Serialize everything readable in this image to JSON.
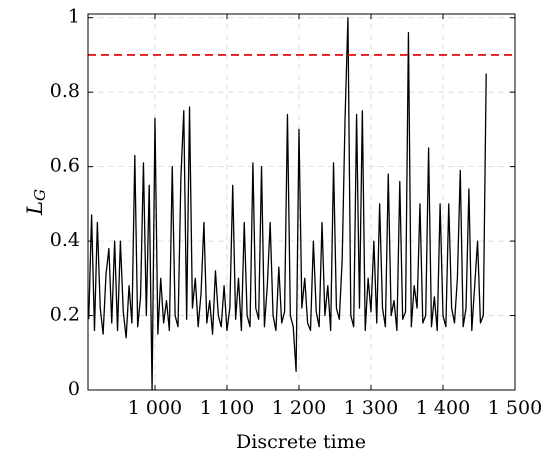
{
  "chart_data": {
    "type": "line",
    "xlabel": "Discrete time",
    "ylabel": {
      "main": "L",
      "sub": "G"
    },
    "xlim": [
      907,
      1500
    ],
    "ylim": [
      0,
      1.01
    ],
    "xticks": [
      {
        "value": 1000,
        "label": "1 000"
      },
      {
        "value": 1100,
        "label": "1 100"
      },
      {
        "value": 1200,
        "label": "1 200"
      },
      {
        "value": 1300,
        "label": "1 300"
      },
      {
        "value": 1400,
        "label": "1 400"
      },
      {
        "value": 1500,
        "label": "1 500"
      }
    ],
    "yticks": [
      0,
      0.2,
      0.4,
      0.6,
      0.8,
      1
    ],
    "grid": true,
    "threshold": {
      "value": 0.9,
      "color": "#e41a1c"
    },
    "x": [
      908,
      912,
      916,
      920,
      924,
      928,
      932,
      936,
      940,
      944,
      948,
      952,
      956,
      960,
      964,
      968,
      972,
      976,
      980,
      984,
      988,
      992,
      996,
      1000,
      1004,
      1008,
      1012,
      1016,
      1020,
      1024,
      1028,
      1032,
      1036,
      1040,
      1044,
      1048,
      1052,
      1056,
      1060,
      1064,
      1068,
      1072,
      1076,
      1080,
      1084,
      1088,
      1092,
      1096,
      1100,
      1104,
      1108,
      1112,
      1116,
      1120,
      1124,
      1128,
      1132,
      1136,
      1140,
      1144,
      1148,
      1152,
      1156,
      1160,
      1164,
      1168,
      1172,
      1176,
      1180,
      1184,
      1188,
      1192,
      1196,
      1200,
      1204,
      1208,
      1212,
      1216,
      1220,
      1224,
      1228,
      1232,
      1236,
      1240,
      1244,
      1248,
      1252,
      1256,
      1260,
      1264,
      1268,
      1272,
      1276,
      1280,
      1284,
      1288,
      1292,
      1296,
      1300,
      1304,
      1308,
      1312,
      1316,
      1320,
      1324,
      1328,
      1332,
      1336,
      1340,
      1344,
      1348,
      1352,
      1356,
      1360,
      1364,
      1368,
      1372,
      1376,
      1380,
      1384,
      1388,
      1392,
      1396,
      1400,
      1404,
      1408,
      1412,
      1416,
      1420,
      1424,
      1428,
      1432,
      1436,
      1440,
      1444,
      1448,
      1452,
      1456,
      1460
    ],
    "series": [
      {
        "name": "L_G",
        "color": "#000000",
        "values": [
          0.19,
          0.47,
          0.16,
          0.45,
          0.22,
          0.15,
          0.31,
          0.38,
          0.18,
          0.4,
          0.16,
          0.4,
          0.21,
          0.14,
          0.28,
          0.18,
          0.63,
          0.17,
          0.25,
          0.61,
          0.2,
          0.55,
          0.0,
          0.73,
          0.15,
          0.3,
          0.18,
          0.24,
          0.16,
          0.6,
          0.2,
          0.17,
          0.57,
          0.75,
          0.19,
          0.76,
          0.22,
          0.3,
          0.17,
          0.26,
          0.45,
          0.18,
          0.24,
          0.15,
          0.32,
          0.2,
          0.17,
          0.28,
          0.16,
          0.22,
          0.55,
          0.19,
          0.3,
          0.16,
          0.45,
          0.2,
          0.17,
          0.61,
          0.22,
          0.19,
          0.6,
          0.17,
          0.28,
          0.45,
          0.2,
          0.16,
          0.33,
          0.18,
          0.21,
          0.74,
          0.2,
          0.17,
          0.05,
          0.7,
          0.22,
          0.3,
          0.18,
          0.16,
          0.4,
          0.21,
          0.17,
          0.45,
          0.2,
          0.28,
          0.16,
          0.61,
          0.22,
          0.19,
          0.35,
          0.73,
          1.0,
          0.2,
          0.17,
          0.74,
          0.22,
          0.75,
          0.16,
          0.3,
          0.21,
          0.4,
          0.18,
          0.5,
          0.22,
          0.17,
          0.58,
          0.2,
          0.24,
          0.16,
          0.56,
          0.19,
          0.21,
          0.96,
          0.17,
          0.28,
          0.22,
          0.5,
          0.18,
          0.2,
          0.65,
          0.17,
          0.25,
          0.16,
          0.5,
          0.2,
          0.17,
          0.5,
          0.22,
          0.18,
          0.3,
          0.59,
          0.17,
          0.22,
          0.54,
          0.16,
          0.28,
          0.4,
          0.18,
          0.2,
          0.85
        ]
      }
    ]
  }
}
